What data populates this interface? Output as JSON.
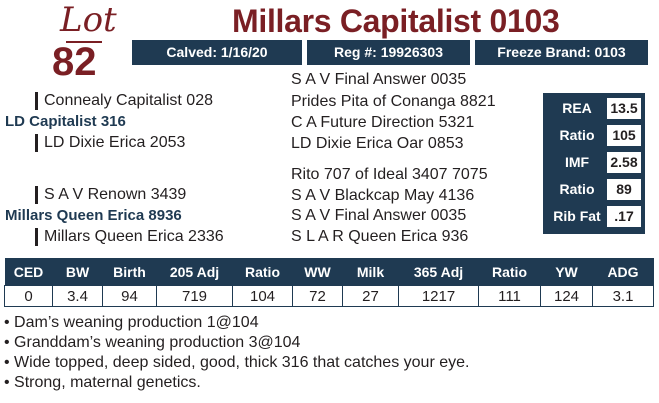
{
  "lot": {
    "word": "Lot",
    "number": "82"
  },
  "title": "Millars Capitalist 0103",
  "header": {
    "calved": "Calved: 1/16/20",
    "reg": "Reg #: 19926303",
    "freeze_brand": "Freeze Brand: 0103"
  },
  "pedigree": {
    "sire": "LD Capitalist 316",
    "sire_sire": "Connealy Capitalist 028",
    "sire_dam": "LD Dixie Erica 2053",
    "sire_sire_sire": "S A V Final Answer 0035",
    "sire_sire_dam": "Prides Pita of Conanga 8821",
    "sire_dam_sire": "C A Future Direction 5321",
    "sire_dam_dam": "LD Dixie Erica Oar 0853",
    "dam": "Millars Queen Erica 8936",
    "dam_sire": "S A V Renown 3439",
    "dam_dam": "Millars Queen Erica 2336",
    "dam_sire_sire": "Rito 707 of Ideal 3407 7075",
    "dam_sire_dam": "S A V Blackcap May 4136",
    "dam_dam_sire": "S A V Final Answer 0035",
    "dam_dam_dam": "S L A R Queen Erica 936"
  },
  "carcass": [
    {
      "label": "REA",
      "value": "13.5"
    },
    {
      "label": "Ratio",
      "value": "105"
    },
    {
      "label": "IMF",
      "value": "2.58"
    },
    {
      "label": "Ratio",
      "value": "89"
    },
    {
      "label": "Rib Fat",
      "value": ".17"
    }
  ],
  "epd_table": {
    "headers": [
      "CED",
      "BW",
      "Birth",
      "205 Adj",
      "Ratio",
      "WW",
      "Milk",
      "365 Adj",
      "Ratio",
      "YW",
      "ADG"
    ],
    "values": [
      "0",
      "3.4",
      "94",
      "719",
      "104",
      "72",
      "27",
      "1217",
      "111",
      "124",
      "3.1"
    ]
  },
  "notes": [
    "• Dam’s weaning production 1@104",
    "• Granddam’s weaning production  3@104",
    "• Wide topped, deep sided, good, thick 316 that catches your eye.",
    "• Strong, maternal genetics."
  ]
}
